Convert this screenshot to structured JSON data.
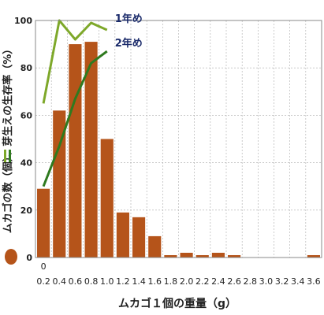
{
  "chart_data": {
    "type": "bar",
    "xlabel": "ムカゴ１個の重量（g）",
    "ylabel_left": "ムカゴの数（個）、",
    "ylabel_right": "芽生えの生存率（%）",
    "ylim": [
      0,
      100
    ],
    "yticks": [
      "0",
      "20",
      "40",
      "60",
      "80",
      "100"
    ],
    "x_zero_label": "0",
    "x_ticks": [
      "0.2",
      "0.4",
      "0.6",
      "0.8",
      "1.0",
      "1.2",
      "1.4",
      "1.6",
      "1.8",
      "2.0",
      "2.2",
      "2.4",
      "2.6",
      "2.8",
      "3.0",
      "3.2",
      "3.4",
      "3.6"
    ],
    "bar_values": [
      29,
      62,
      90,
      91,
      50,
      19,
      17,
      9,
      1,
      2,
      1,
      2,
      1,
      0,
      0,
      0,
      0,
      1
    ],
    "bar_color": "#b5541a",
    "grid": true,
    "series": [
      {
        "name": "1年め",
        "color": "#7ea82a",
        "points": [
          [
            0.2,
            65
          ],
          [
            0.4,
            100
          ],
          [
            0.6,
            92
          ],
          [
            0.8,
            99
          ],
          [
            1.0,
            96
          ]
        ]
      },
      {
        "name": "2年め",
        "color": "#2f7a1f",
        "points": [
          [
            0.2,
            30
          ],
          [
            0.4,
            47
          ],
          [
            0.6,
            67
          ],
          [
            0.8,
            82
          ],
          [
            1.0,
            87
          ]
        ]
      }
    ]
  }
}
